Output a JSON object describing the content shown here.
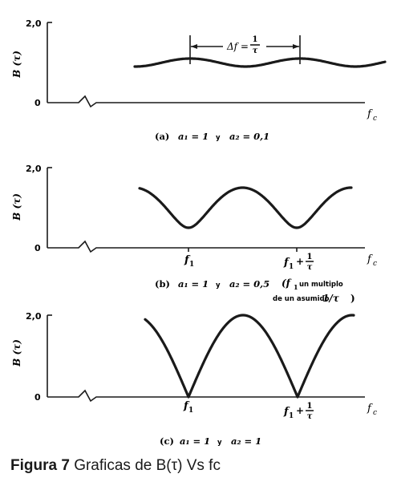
{
  "chart_data": [
    {
      "type": "line",
      "panel": "(a)",
      "ylabel": "B (τ)",
      "xlabel": "f",
      "xlabel_sub": "c",
      "y_ticks": [
        "2,0",
        "0"
      ],
      "ylim": [
        0,
        2.0
      ],
      "axis_break": true,
      "series": [
        {
          "amplitude": 0.1,
          "x": [
            0.0,
            0.25,
            0.5,
            0.75,
            1.0,
            1.25,
            1.5,
            1.75,
            2.0,
            2.25
          ],
          "values": [
            1.05,
            1.0,
            0.95,
            1.0,
            1.05,
            1.0,
            0.95,
            1.0,
            1.05,
            1.0
          ]
        }
      ],
      "annotation": {
        "lead": "Δf =",
        "num": "1",
        "den": "τ"
      },
      "caption": {
        "panel": "(a)",
        "a1": "a₁ = 1",
        "y": "y",
        "a2": "a₂ = 0,1"
      }
    },
    {
      "type": "line",
      "panel": "(b)",
      "ylabel": "B (τ)",
      "xlabel": "f",
      "xlabel_sub": "c",
      "y_ticks": [
        "2,0",
        "0"
      ],
      "ylim": [
        0,
        2.0
      ],
      "axis_break": true,
      "series": [
        {
          "amplitude": 0.5,
          "x": [
            -0.5,
            -0.25,
            0.0,
            0.25,
            0.5,
            0.75,
            1.0,
            1.25,
            1.5
          ],
          "values": [
            1.5,
            1.0,
            0.5,
            1.0,
            1.5,
            1.0,
            0.5,
            1.0,
            1.5
          ]
        }
      ],
      "x_ticks": [
        {
          "main": "f",
          "sub": "1"
        },
        {
          "main": "f",
          "sub": "1",
          "plus": "+",
          "num": "1",
          "den": "τ"
        }
      ],
      "caption": {
        "panel": "(b)",
        "a1": "a₁ = 1",
        "y": "y",
        "a2": "a₂ = 0,5"
      },
      "note": {
        "open": "(f",
        "sub": "1",
        "line1": "un multiplo",
        "line2": "de un asumido",
        "value": "1/τ",
        "close": ")"
      }
    },
    {
      "type": "line",
      "panel": "(c)",
      "ylabel": "B (τ)",
      "xlabel": "f",
      "xlabel_sub": "c",
      "y_ticks": [
        "2,0",
        "0"
      ],
      "ylim": [
        0,
        2.0
      ],
      "axis_break": true,
      "series": [
        {
          "amplitude": 1.0,
          "x": [
            -0.5,
            -0.25,
            0.0,
            0.25,
            0.5,
            0.75,
            1.0,
            1.25,
            1.5
          ],
          "values": [
            2.0,
            1.41,
            0.0,
            1.41,
            2.0,
            1.41,
            0.0,
            1.41,
            2.0
          ]
        }
      ],
      "x_ticks": [
        {
          "main": "f",
          "sub": "1"
        },
        {
          "main": "f",
          "sub": "1",
          "plus": "+",
          "num": "1",
          "den": "τ"
        }
      ],
      "caption": {
        "panel": "(c)",
        "a1": "a₁ = 1",
        "y": "y",
        "a2": "a₂ = 1"
      }
    }
  ],
  "figure_caption": {
    "label": "Figura 7",
    "text": "Graficas de B(τ) Vs fc"
  }
}
